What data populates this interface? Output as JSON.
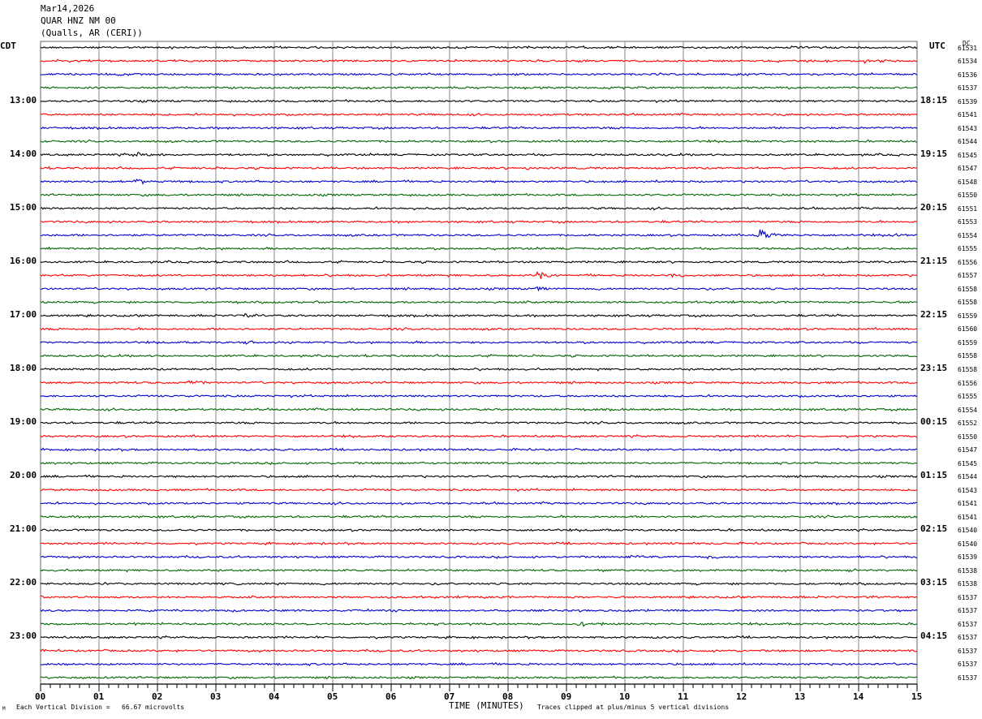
{
  "header": {
    "date": "Mar14,2026",
    "station": "QUAR HNZ NM 00",
    "location": "(Qualls, AR (CERI))"
  },
  "left_zone": "CDT",
  "right_zone": "UTC",
  "dc_header": "DC",
  "footer": {
    "division": "Each Vertical Division =   66.67 microvolts",
    "xlabel": "TIME (MINUTES)",
    "clip_note": "Traces clipped at plus/minus 5 vertical divisions",
    "corner_mark": "M"
  },
  "colors": {
    "cycle": [
      "#000000",
      "#ff0000",
      "#0000cc",
      "#006600"
    ],
    "grid": "#888888"
  },
  "chart_data": {
    "type": "line",
    "xlim": [
      0,
      15
    ],
    "x_ticks": [
      "00",
      "01",
      "02",
      "03",
      "04",
      "05",
      "06",
      "07",
      "08",
      "09",
      "10",
      "11",
      "12",
      "13",
      "14",
      "15"
    ],
    "left_hour_labels": [
      "13:00",
      "14:00",
      "15:00",
      "16:00",
      "17:00",
      "18:00",
      "19:00",
      "20:00",
      "21:00",
      "22:00",
      "23:00"
    ],
    "right_hour_labels": [
      "18:15",
      "19:15",
      "20:15",
      "21:15",
      "22:15",
      "23:15",
      "00:15",
      "01:15",
      "02:15",
      "03:15",
      "04:15"
    ],
    "trace_count": 48,
    "dc_values": [
      "61531",
      "61534",
      "61536",
      "61537",
      "61539",
      "61541",
      "61543",
      "61544",
      "61545",
      "61547",
      "61548",
      "61550",
      "61551",
      "61553",
      "61554",
      "61555",
      "61556",
      "61557",
      "61558",
      "61558",
      "61559",
      "61560",
      "61559",
      "61558",
      "61558",
      "61556",
      "61555",
      "61554",
      "61552",
      "61550",
      "61547",
      "61545",
      "61544",
      "61543",
      "61541",
      "61541",
      "61540",
      "61540",
      "61539",
      "61538",
      "61538",
      "61537",
      "61537",
      "61537",
      "61537",
      "61537",
      "61537",
      "61537"
    ],
    "events": [
      {
        "trace": 1,
        "minute": 14.1,
        "amp": 3
      },
      {
        "trace": 8,
        "minute": 1.6,
        "amp": 6
      },
      {
        "trace": 9,
        "minute": 8.3,
        "amp": 2
      },
      {
        "trace": 10,
        "minute": 1.6,
        "amp": 5
      },
      {
        "trace": 14,
        "minute": 12.3,
        "amp": 9
      },
      {
        "trace": 14,
        "minute": 14.6,
        "amp": 4
      },
      {
        "trace": 17,
        "minute": 8.5,
        "amp": 6
      },
      {
        "trace": 17,
        "minute": 10.8,
        "amp": 4
      },
      {
        "trace": 18,
        "minute": 8.5,
        "amp": 3
      },
      {
        "trace": 20,
        "minute": 3.5,
        "amp": 3
      },
      {
        "trace": 22,
        "minute": 3.5,
        "amp": 3
      },
      {
        "trace": 25,
        "minute": 2.5,
        "amp": 4
      },
      {
        "trace": 38,
        "minute": 10.1,
        "amp": 3
      },
      {
        "trace": 38,
        "minute": 11.4,
        "amp": 3
      },
      {
        "trace": 43,
        "minute": 9.2,
        "amp": 4
      }
    ]
  }
}
